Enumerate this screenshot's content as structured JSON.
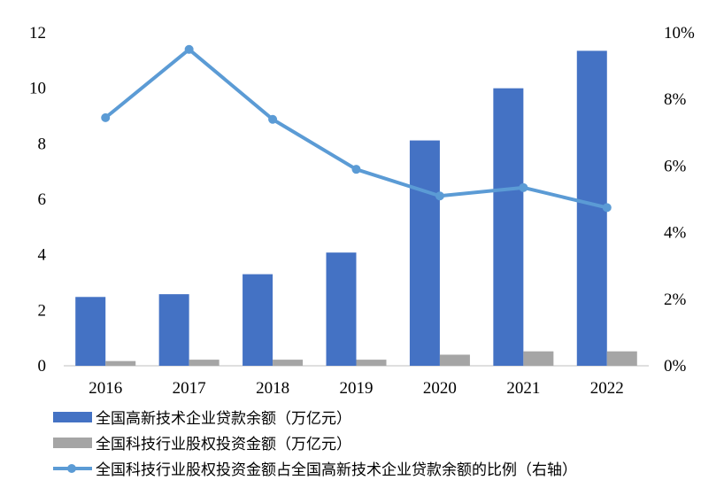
{
  "chart_data": {
    "type": "bar",
    "categories": [
      "2016",
      "2017",
      "2018",
      "2019",
      "2020",
      "2021",
      "2022"
    ],
    "series": [
      {
        "name": "全国高新技术企业贷款余额（万亿元）",
        "type": "bar",
        "axis": "left",
        "color": "#4472C4",
        "values": [
          2.48,
          2.58,
          3.3,
          4.08,
          8.12,
          10.0,
          11.35
        ]
      },
      {
        "name": "全国科技行业股权投资金额（万亿元）",
        "type": "bar",
        "axis": "left",
        "color": "#A5A5A5",
        "values": [
          0.17,
          0.22,
          0.22,
          0.22,
          0.4,
          0.52,
          0.52
        ]
      },
      {
        "name": "全国科技行业股权投资金额占全国高新技术企业贷款余额的比例（右轴）",
        "type": "line",
        "axis": "right",
        "color": "#5B9BD5",
        "values": [
          7.45,
          9.5,
          7.4,
          5.9,
          5.1,
          5.35,
          4.75
        ]
      }
    ],
    "y_left": {
      "range": [
        0,
        12
      ],
      "ticks": [
        "0",
        "2",
        "4",
        "6",
        "8",
        "10",
        "12"
      ]
    },
    "y_right": {
      "range": [
        0,
        10
      ],
      "ticks": [
        "0%",
        "2%",
        "4%",
        "6%",
        "8%",
        "10%"
      ]
    },
    "grid": false,
    "legend_position": "bottom-left"
  }
}
